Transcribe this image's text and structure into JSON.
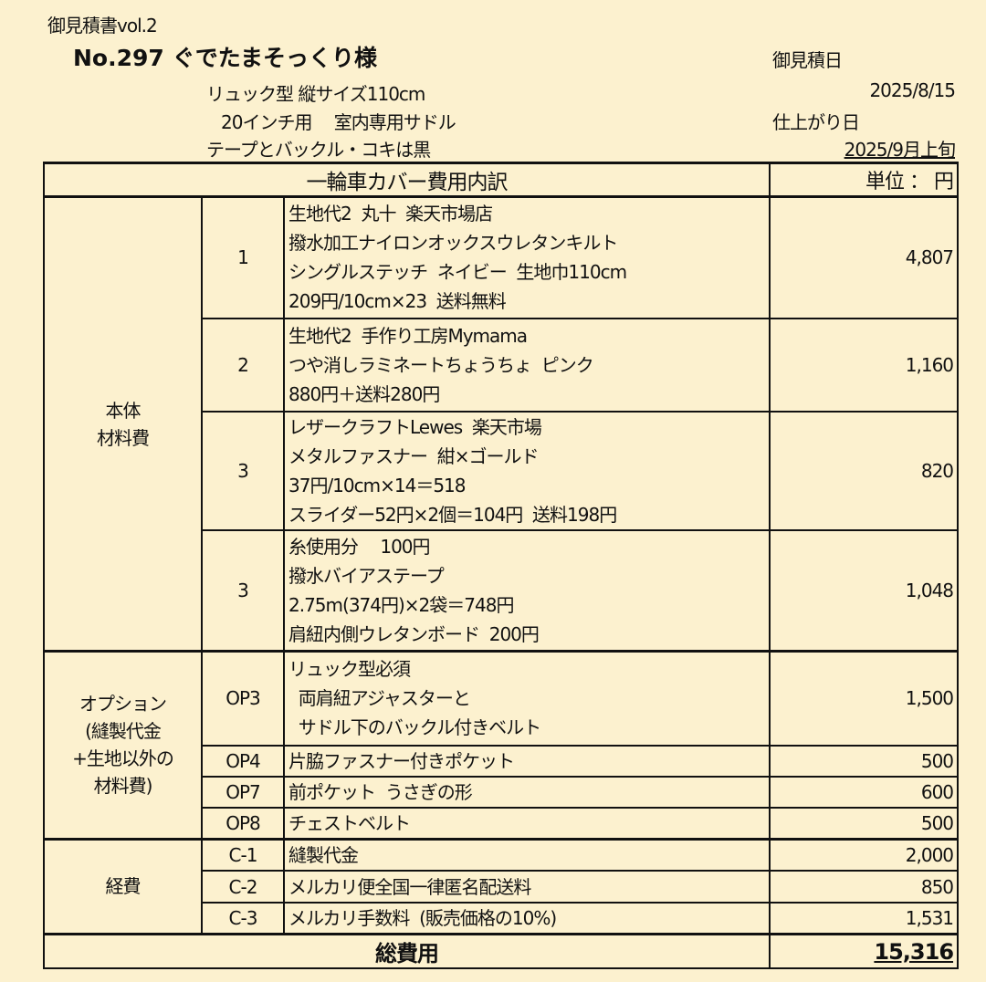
{
  "header": {
    "doc_title": "御見積書vol.2",
    "customer": "No.297  ぐでたまそっくり様",
    "spec_lines": [
      "リュック型  縦サイズ110cm",
      "20インチ用　 室内専用サドル",
      "テープとバックル・コキは黒"
    ],
    "estimate_date_label": "御見積日",
    "estimate_date": "2025/8/15",
    "finish_date_label": "仕上がり日",
    "finish_date": "2025/9月上旬"
  },
  "table": {
    "title": "一輪車カバー費用内訳",
    "unit": "単位 ： 円",
    "groups": [
      {
        "category": [
          "本体",
          "材料費"
        ],
        "rows": [
          {
            "no": "1",
            "lines": [
              "生地代2  丸十  楽天市場店",
              "撥水加工ナイロンオックスウレタンキルト",
              "シングルステッチ  ネイビー  生地巾110cm",
              "209円/10cm×23  送料無料"
            ],
            "amount": "4,807"
          },
          {
            "no": "2",
            "lines": [
              "生地代2  手作り工房Mymama",
              "つや消しラミネートちょうちょ  ピンク",
              "880円＋送料280円"
            ],
            "amount": "1,160"
          },
          {
            "no": "3",
            "lines": [
              "レザークラフトLewes  楽天市場",
              "メタルファスナー  紺×ゴールド",
              "37円/10cm×14＝518",
              "スライダー52円×2個＝104円  送料198円"
            ],
            "amount": "820"
          },
          {
            "no": "3",
            "lines": [
              "糸使用分　 100円",
              "撥水バイアステープ",
              "2.75m(374円)×2袋＝748円",
              "肩紐内側ウレタンボード  200円"
            ],
            "amount": "1,048"
          }
        ]
      },
      {
        "category": [
          "オプション",
          "(縫製代金",
          "+生地以外の",
          "材料費)"
        ],
        "rows": [
          {
            "no": "OP3",
            "lines": [
              "リュック型必須",
              "  両肩紐アジャスターと",
              "  サドル下のバックル付きベルト"
            ],
            "amount": "1,500"
          },
          {
            "no": "OP4",
            "lines": [
              "片脇ファスナー付きポケット"
            ],
            "amount": "500"
          },
          {
            "no": "OP7",
            "lines": [
              "前ポケット  うさぎの形"
            ],
            "amount": "600"
          },
          {
            "no": "OP8",
            "lines": [
              "チェストベルト"
            ],
            "amount": "500"
          }
        ]
      },
      {
        "category": [
          "経費"
        ],
        "rows": [
          {
            "no": "C-1",
            "lines": [
              "縫製代金"
            ],
            "amount": "2,000"
          },
          {
            "no": "C-2",
            "lines": [
              "メルカリ便全国一律匿名配送料"
            ],
            "amount": "850"
          },
          {
            "no": "C-3",
            "lines": [
              "メルカリ手数料  (販売価格の10%)"
            ],
            "amount": "1,531"
          }
        ]
      }
    ],
    "total_label": "総費用",
    "total": "15,316"
  }
}
